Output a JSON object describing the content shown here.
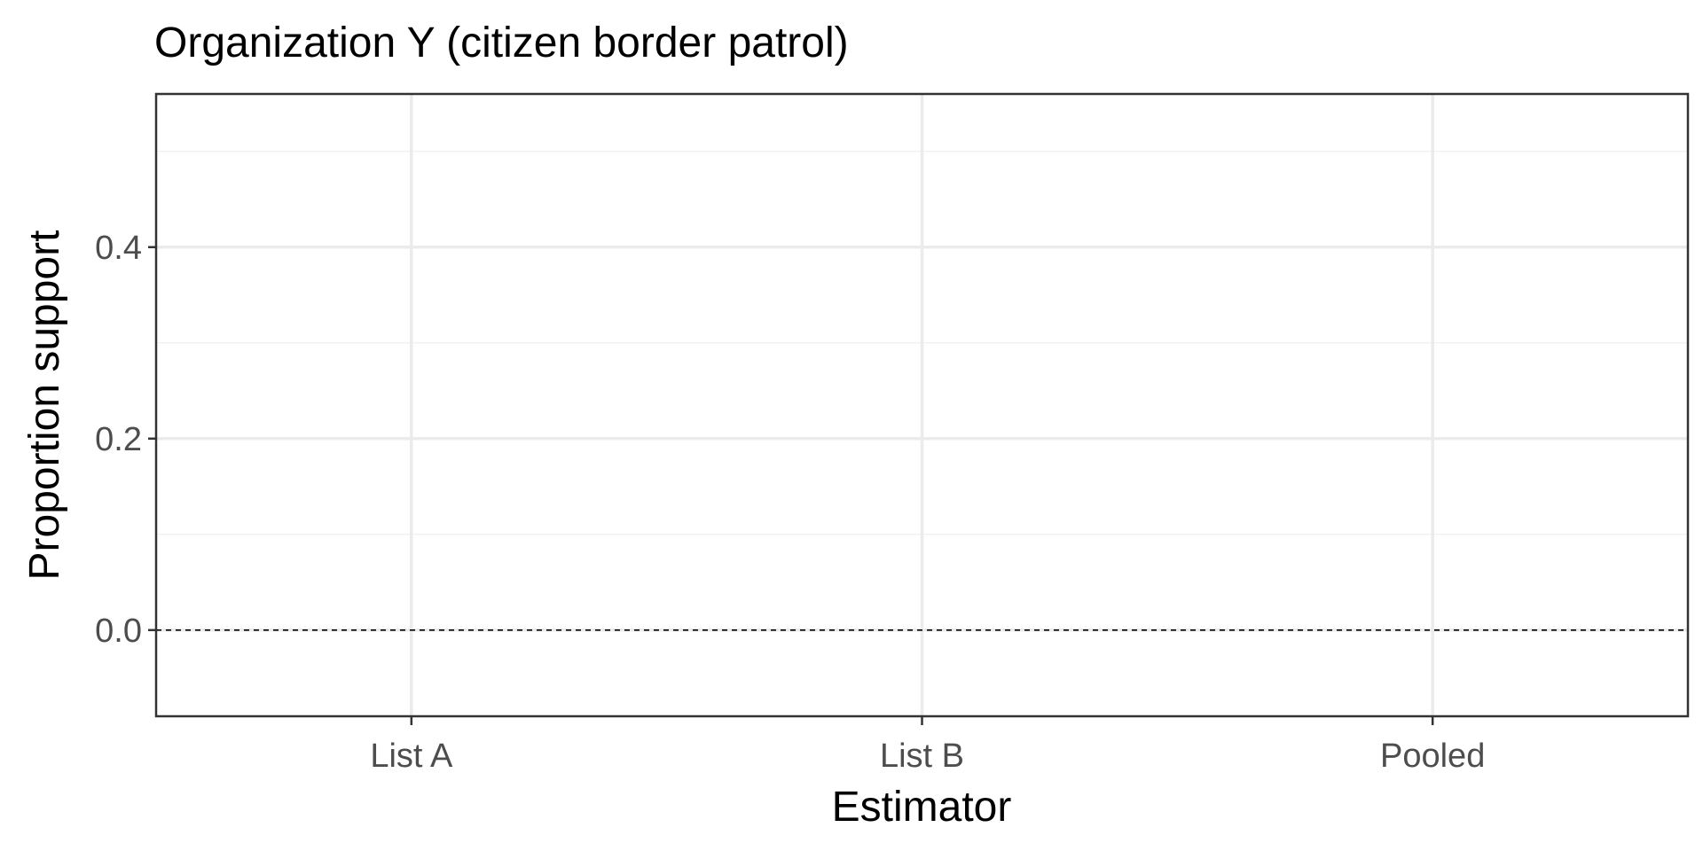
{
  "chart_data": {
    "type": "scatter",
    "title": "Organization Y (citizen border patrol)",
    "xlabel": "Estimator",
    "ylabel": "Proportion support",
    "categories": [
      "List A",
      "List B",
      "Pooled"
    ],
    "ylim": [
      -0.09,
      0.56
    ],
    "yticks": [
      0.0,
      0.2,
      0.4
    ],
    "ytick_labels": [
      "0.0",
      "0.2",
      "0.4"
    ],
    "y_minor_gridlines": [
      0.1,
      0.3,
      0.5
    ],
    "reference_line": {
      "y": 0.0,
      "style": "dashed"
    },
    "grid": true,
    "series": []
  },
  "colors": {
    "panel_border": "#333333",
    "major_grid": "#ebebeb",
    "minor_grid": "#f2f2f2",
    "tick_text": "#4d4d4d",
    "reference_line": "#000000"
  }
}
